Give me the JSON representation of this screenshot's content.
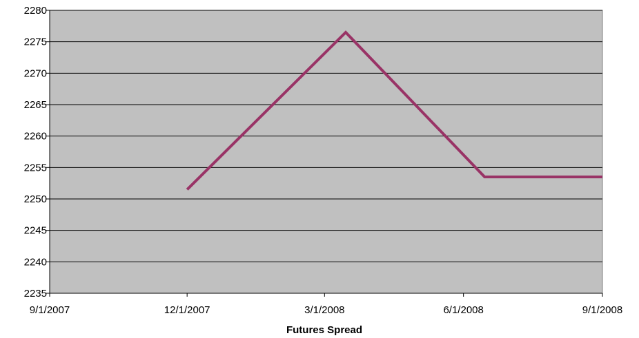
{
  "chart_data": {
    "type": "line",
    "title": "",
    "xlabel": "Futures Spread",
    "ylabel": "",
    "x_tick_labels": [
      "9/1/2007",
      "12/1/2007",
      "3/1/2008",
      "6/1/2008",
      "9/1/2008"
    ],
    "x_ticks": [
      "2007-09-01",
      "2007-12-01",
      "2008-03-01",
      "2008-06-01",
      "2008-09-01"
    ],
    "xlim": [
      "2007-09-01",
      "2008-09-01"
    ],
    "ylim": [
      2235,
      2280
    ],
    "y_ticks": [
      2235,
      2240,
      2245,
      2250,
      2255,
      2260,
      2265,
      2270,
      2275,
      2280
    ],
    "grid": true,
    "legend": "none",
    "colors": {
      "plot_background": "#c0c0c0",
      "line": "#993366",
      "grid": "#000000"
    },
    "series": [
      {
        "x": [
          "2007-12-01",
          "2008-03-15",
          "2008-06-15",
          "2008-09-01"
        ],
        "values": [
          2251.5,
          2276.5,
          2253.5,
          2253.5
        ]
      }
    ]
  }
}
